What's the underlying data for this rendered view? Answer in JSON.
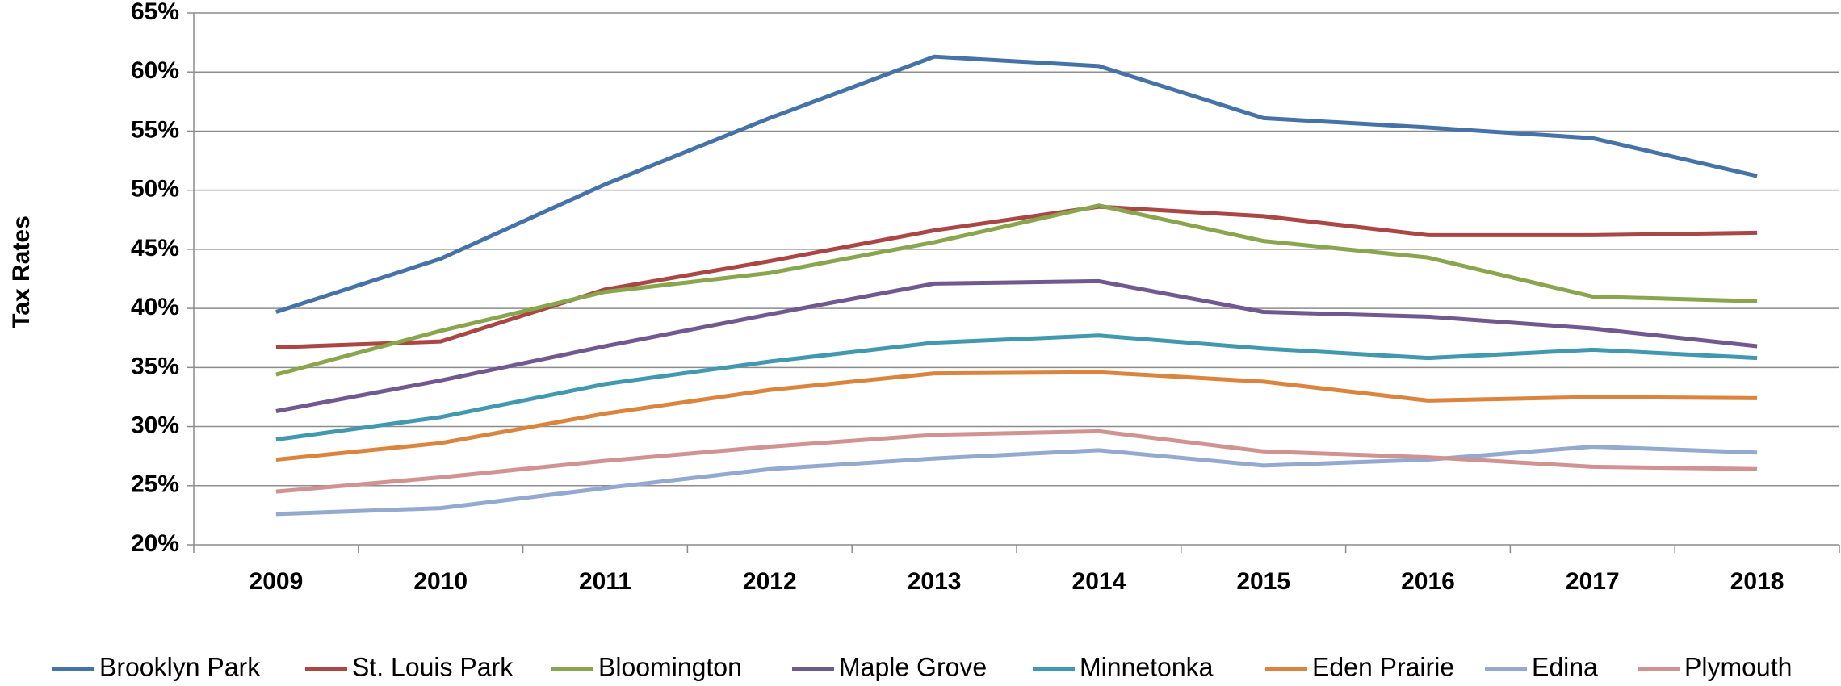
{
  "chart_data": {
    "type": "line",
    "y_axis_label": "Tax Rates",
    "categories": [
      "2009",
      "2010",
      "2011",
      "2012",
      "2013",
      "2014",
      "2015",
      "2016",
      "2017",
      "2018"
    ],
    "series": [
      {
        "name": "Brooklyn Park",
        "color": "#4572a7",
        "values": [
          39.7,
          44.2,
          50.5,
          56.1,
          61.3,
          60.5,
          56.1,
          55.3,
          54.4,
          51.2
        ]
      },
      {
        "name": "St. Louis Park",
        "color": "#aa4643",
        "values": [
          36.7,
          37.2,
          41.6,
          44.0,
          46.6,
          48.6,
          47.8,
          46.2,
          46.2,
          46.4
        ]
      },
      {
        "name": "Bloomington",
        "color": "#89a54e",
        "values": [
          34.4,
          38.1,
          41.4,
          43.0,
          45.6,
          48.7,
          45.7,
          44.3,
          41.0,
          40.6
        ]
      },
      {
        "name": "Maple Grove",
        "color": "#71588f",
        "values": [
          31.3,
          33.9,
          36.8,
          39.5,
          42.1,
          42.3,
          39.7,
          39.3,
          38.3,
          36.8
        ]
      },
      {
        "name": "Minnetonka",
        "color": "#4198af",
        "values": [
          28.9,
          30.8,
          33.6,
          35.5,
          37.1,
          37.7,
          36.6,
          35.8,
          36.5,
          35.8
        ]
      },
      {
        "name": "Eden Prairie",
        "color": "#db843d",
        "values": [
          27.2,
          28.6,
          31.1,
          33.1,
          34.5,
          34.6,
          33.8,
          32.2,
          32.5,
          32.4
        ]
      },
      {
        "name": "Edina",
        "color": "#93a9cf",
        "values": [
          22.6,
          23.1,
          24.8,
          26.4,
          27.3,
          28.0,
          26.7,
          27.2,
          28.3,
          27.8
        ]
      },
      {
        "name": "Plymouth",
        "color": "#d19392",
        "values": [
          24.5,
          25.7,
          27.1,
          28.3,
          29.3,
          29.6,
          27.9,
          27.4,
          26.6,
          26.4
        ]
      }
    ],
    "ylim": [
      20,
      65
    ],
    "yticks": [
      {
        "value": 20,
        "label": "20%"
      },
      {
        "value": 25,
        "label": "25%"
      },
      {
        "value": 30,
        "label": "30%"
      },
      {
        "value": 35,
        "label": "35%"
      },
      {
        "value": 40,
        "label": "40%"
      },
      {
        "value": 45,
        "label": "45%"
      },
      {
        "value": 50,
        "label": "50%"
      },
      {
        "value": 55,
        "label": "55%"
      },
      {
        "value": 60,
        "label": "60%"
      },
      {
        "value": 65,
        "label": "65%"
      }
    ],
    "grid": true,
    "legend": "bottom"
  }
}
